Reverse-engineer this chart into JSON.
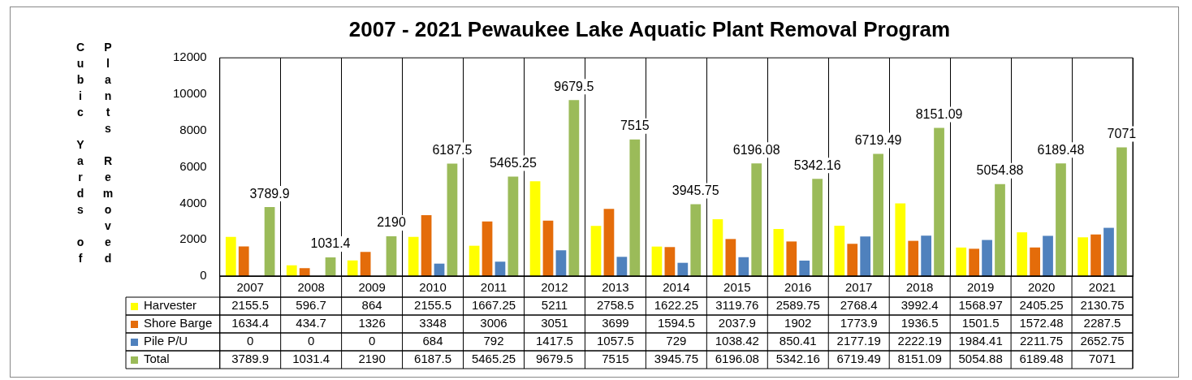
{
  "chart_data": {
    "type": "bar",
    "title": "2007 - 2021 Pewaukee Lake Aquatic Plant Removal Program",
    "ylabel": "Cubic Yards of Plants Removed",
    "categories": [
      "2007",
      "2008",
      "2009",
      "2010",
      "2011",
      "2012",
      "2013",
      "2014",
      "2015",
      "2016",
      "2017",
      "2018",
      "2019",
      "2020",
      "2021"
    ],
    "series": [
      {
        "name": "Harvester",
        "color": "#ffff00",
        "values": [
          2155.5,
          596.7,
          864,
          2155.5,
          1667.25,
          5211,
          2758.5,
          1622.25,
          3119.76,
          2589.75,
          2768.4,
          3992.4,
          1568.97,
          2405.25,
          2130.75
        ]
      },
      {
        "name": "Shore Barge",
        "color": "#e46c0a",
        "values": [
          1634.4,
          434.7,
          1326,
          3348,
          3006,
          3051,
          3699,
          1594.5,
          2037.9,
          1902,
          1773.9,
          1936.5,
          1501.5,
          1572.48,
          2287.5
        ]
      },
      {
        "name": "Pile P/U",
        "color": "#4f81bd",
        "values": [
          0,
          0,
          0,
          684,
          792,
          1417.5,
          1057.5,
          729,
          1038.42,
          850.41,
          2177.19,
          2222.19,
          1984.41,
          2211.75,
          2652.75
        ]
      },
      {
        "name": "Total",
        "color": "#9bbb59",
        "values": [
          3789.9,
          1031.4,
          2190,
          6187.5,
          5465.25,
          9679.5,
          7515,
          3945.75,
          6196.08,
          5342.16,
          6719.49,
          8151.09,
          5054.88,
          6189.48,
          7071
        ]
      }
    ],
    "annotations": [
      "3789.9",
      "1031.4",
      "2190",
      "6187.5",
      "5465.25",
      "9679.5",
      "7515",
      "3945.75",
      "6196.08",
      "5342.16",
      "6719.49",
      "8151.09",
      "5054.88",
      "6189.48",
      "7071"
    ],
    "ylim": [
      0,
      12000
    ],
    "yticks": [
      0,
      2000,
      4000,
      6000,
      8000,
      10000,
      12000
    ],
    "grid": "x",
    "legend": "bottom",
    "data_labels": true
  }
}
